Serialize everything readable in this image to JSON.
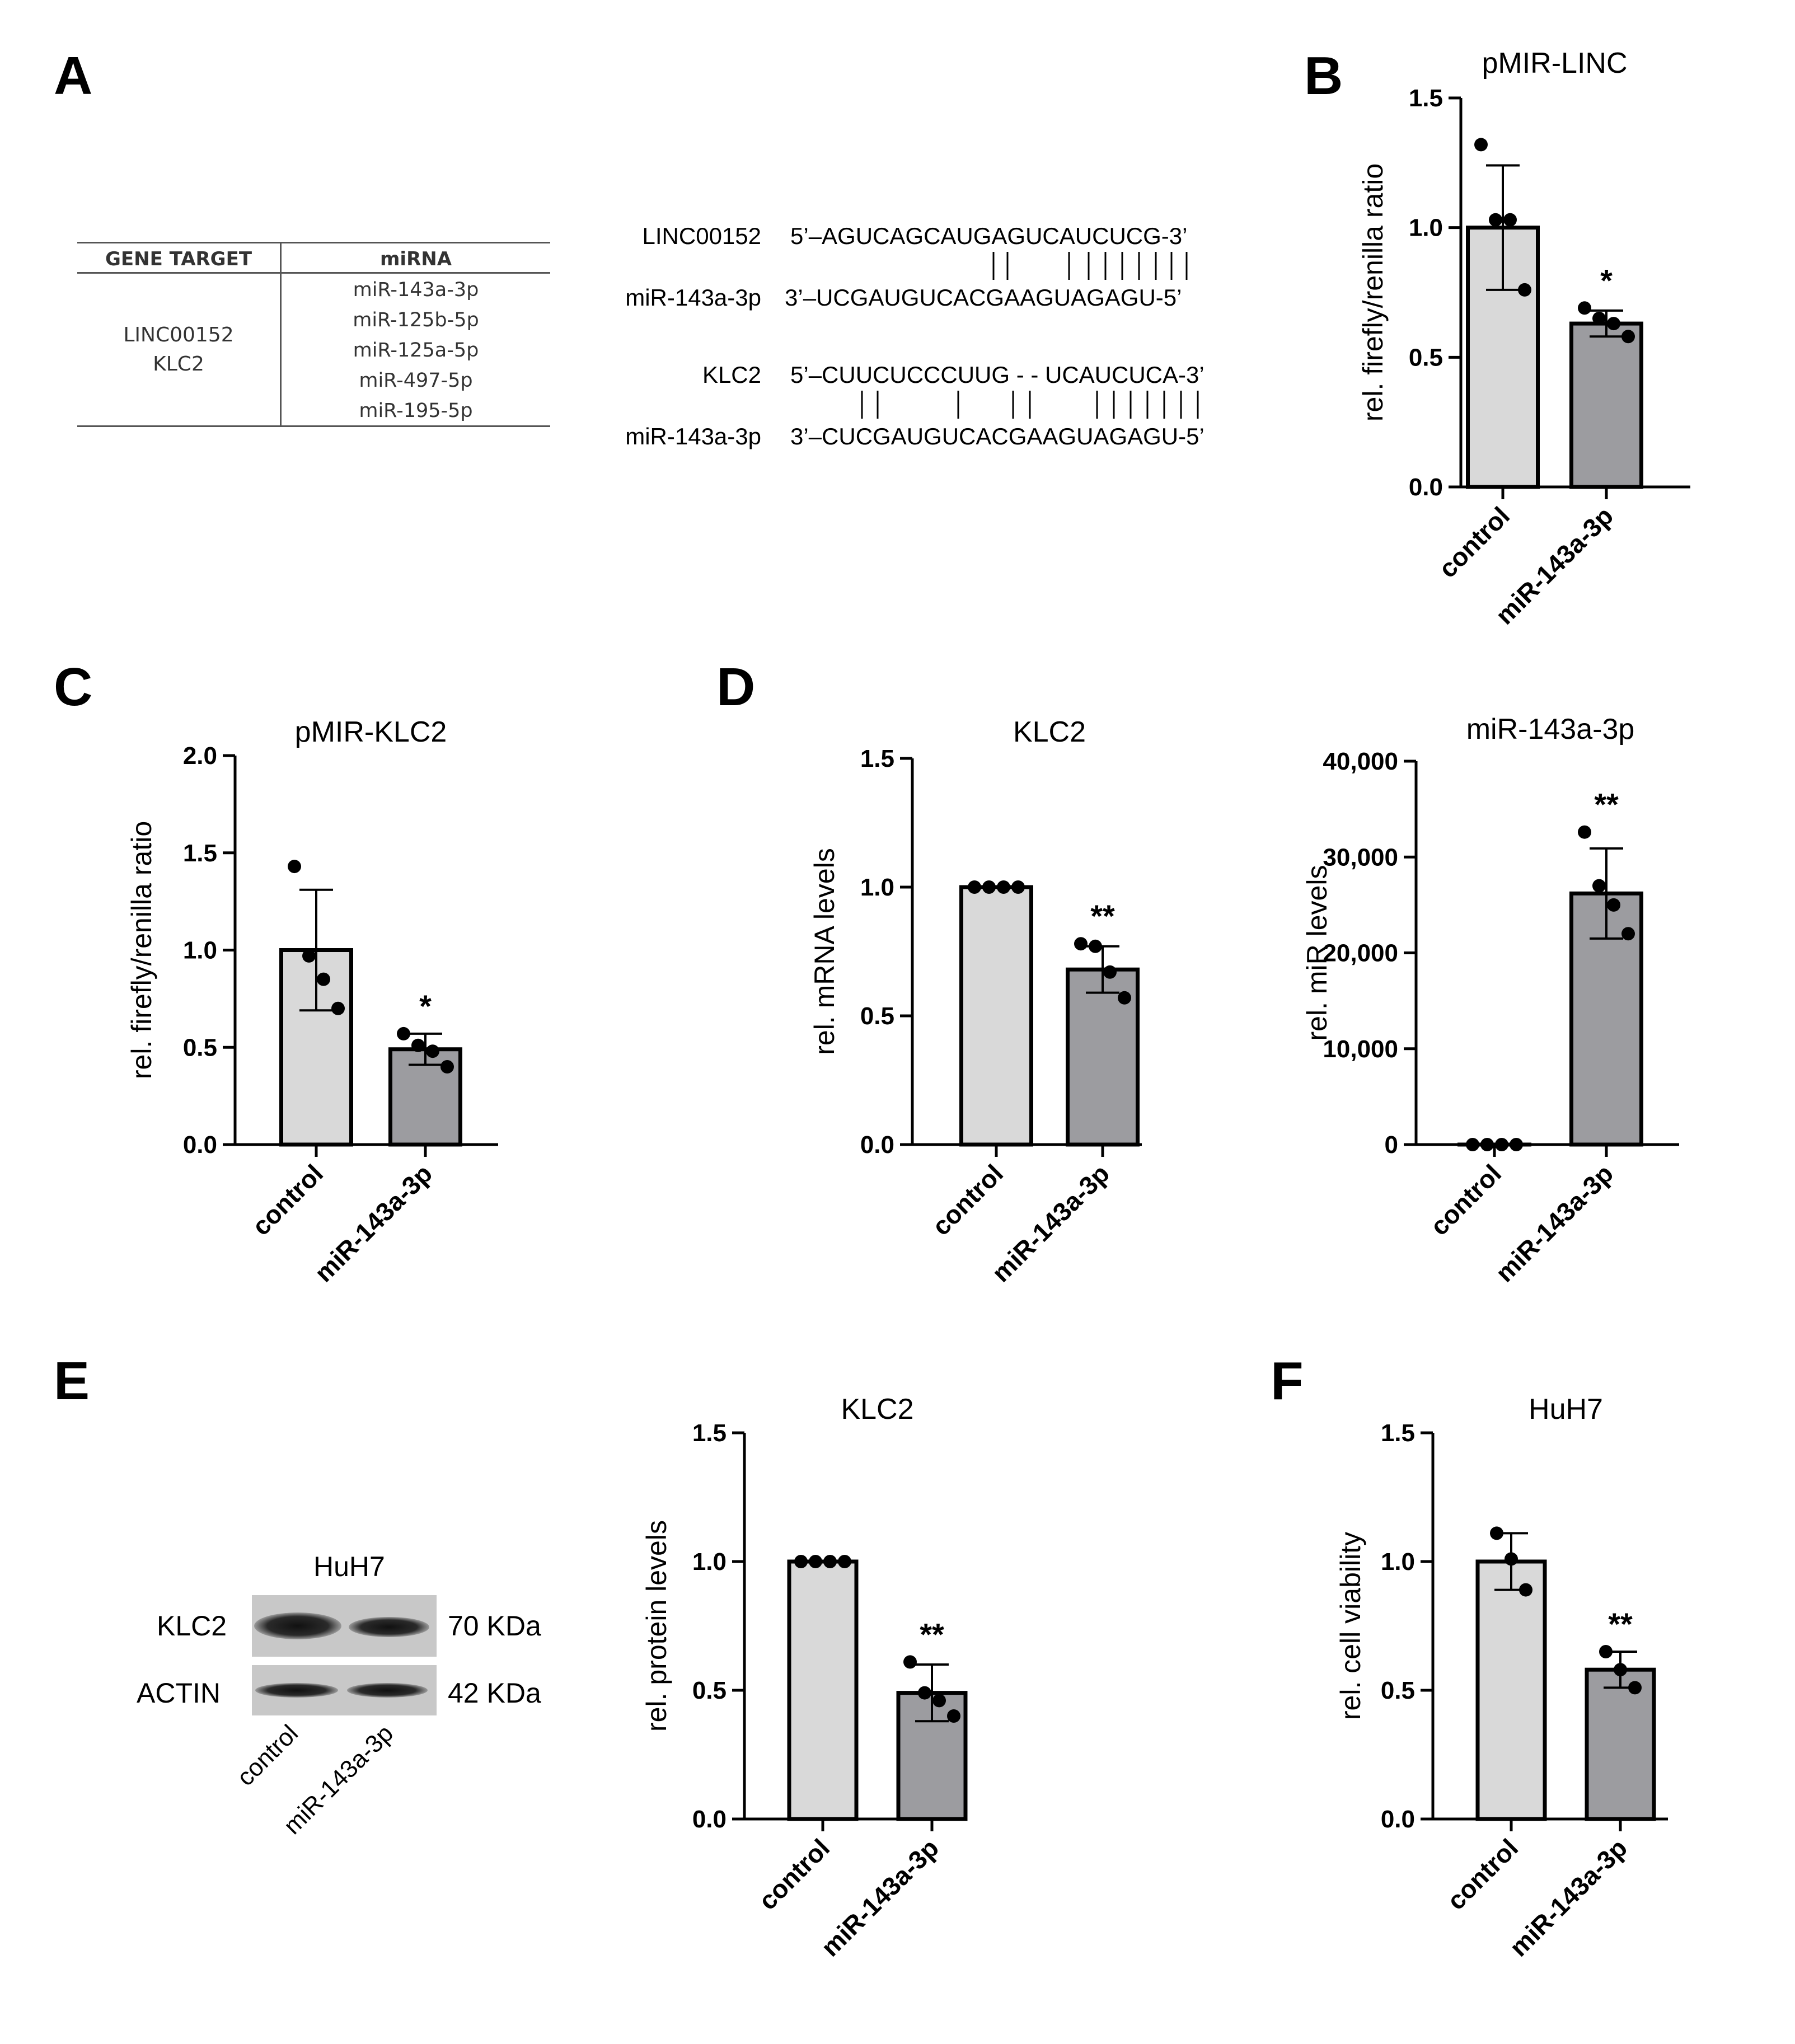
{
  "panel_letters": {
    "A": "A",
    "B": "B",
    "C": "C",
    "D": "D",
    "E": "E",
    "F": "F"
  },
  "table": {
    "header_gene": "GENE TARGET",
    "header_mirna": "miRNA",
    "genes": [
      "LINC00152",
      "KLC2"
    ],
    "mirnas": [
      "miR-143a-3p",
      "miR-125b-5p",
      "miR-125a-5p",
      "miR-497-5p",
      "miR-195-5p"
    ]
  },
  "alignments": [
    {
      "target_label": "LINC00152",
      "target_seq": "5’–AGUCAGCAUGAGUCAUCUCG-3’",
      "mir_label": "miR-143a-3p",
      "mir_seq": "3’–UCGAUGUCACGAAGUAGAGU-5’"
    },
    {
      "target_label": "KLC2",
      "target_seq": "5’–CUUCUCCCUUG - - UCAUCUCA-3’",
      "mir_label": "miR-143a-3p",
      "mir_seq": "3’–CUCGAUGUCACGAAGUAGAGU-5’"
    }
  ],
  "blot": {
    "title": "HuH7",
    "rows": [
      {
        "label": "KLC2",
        "size": "70 KDa"
      },
      {
        "label": "ACTIN",
        "size": "42 KDa"
      }
    ],
    "lanes": [
      "control",
      "miR-143a-3p"
    ]
  },
  "colors": {
    "control_bar": "#d9d9d9",
    "treated_bar": "#9c9ca0",
    "axis": "#000000"
  },
  "chart_data": [
    {
      "id": "B",
      "type": "bar",
      "title": "pMIR-LINC",
      "ylabel": "rel. firefly/renilla ratio",
      "categories": [
        "control",
        "miR-143a-3p"
      ],
      "ylim": [
        0,
        1.5
      ],
      "yticks": [
        0.0,
        0.5,
        1.0,
        1.5
      ],
      "ytick_labels": [
        "0.0",
        "0.5",
        "1.0",
        "1.5"
      ],
      "values": [
        1.0,
        0.63
      ],
      "errors": [
        0.24,
        0.05
      ],
      "points": [
        [
          1.32,
          1.03,
          1.03,
          0.76
        ],
        [
          0.69,
          0.65,
          0.63,
          0.58
        ]
      ],
      "significance": [
        "",
        "*"
      ]
    },
    {
      "id": "C",
      "type": "bar",
      "title": "pMIR-KLC2",
      "ylabel": "rel. firefly/renilla ratio",
      "categories": [
        "control",
        "miR-143a-3p"
      ],
      "ylim": [
        0,
        2.0
      ],
      "yticks": [
        0.0,
        0.5,
        1.0,
        1.5,
        2.0
      ],
      "ytick_labels": [
        "0.0",
        "0.5",
        "1.0",
        "1.5",
        "2.0"
      ],
      "values": [
        1.0,
        0.49
      ],
      "errors": [
        0.31,
        0.08
      ],
      "points": [
        [
          1.43,
          0.97,
          0.85,
          0.7
        ],
        [
          0.57,
          0.51,
          0.48,
          0.4
        ]
      ],
      "significance": [
        "",
        "*"
      ]
    },
    {
      "id": "D1",
      "type": "bar",
      "title": "KLC2",
      "ylabel": "rel. mRNA levels",
      "categories": [
        "control",
        "miR-143a-3p"
      ],
      "ylim": [
        0,
        1.5
      ],
      "yticks": [
        0.0,
        0.5,
        1.0,
        1.5
      ],
      "ytick_labels": [
        "0.0",
        "0.5",
        "1.0",
        "1.5"
      ],
      "values": [
        1.0,
        0.68
      ],
      "errors": [
        0.0,
        0.09
      ],
      "points": [
        [
          1.0,
          1.0,
          1.0,
          1.0
        ],
        [
          0.78,
          0.77,
          0.67,
          0.57
        ]
      ],
      "significance": [
        "",
        "**"
      ]
    },
    {
      "id": "D2",
      "type": "bar",
      "title": "miR-143a-3p",
      "ylabel": "rel. miR levels",
      "categories": [
        "control",
        "miR-143a-3p"
      ],
      "ylim": [
        0,
        40000
      ],
      "yticks": [
        0,
        10000,
        20000,
        30000,
        40000
      ],
      "ytick_labels": [
        "0",
        "10,000",
        "20,000",
        "30,000",
        "40,000"
      ],
      "values": [
        1,
        26200
      ],
      "errors": [
        0,
        4700
      ],
      "points": [
        [
          1,
          1,
          1,
          1
        ],
        [
          32600,
          27000,
          25000,
          22000
        ]
      ],
      "significance": [
        "",
        "**"
      ]
    },
    {
      "id": "E",
      "type": "bar",
      "title": "KLC2",
      "ylabel": "rel. protein levels",
      "categories": [
        "control",
        "miR-143a-3p"
      ],
      "ylim": [
        0,
        1.5
      ],
      "yticks": [
        0.0,
        0.5,
        1.0,
        1.5
      ],
      "ytick_labels": [
        "0.0",
        "0.5",
        "1.0",
        "1.5"
      ],
      "values": [
        1.0,
        0.49
      ],
      "errors": [
        0.0,
        0.11
      ],
      "points": [
        [
          1.0,
          1.0,
          1.0,
          1.0
        ],
        [
          0.61,
          0.49,
          0.46,
          0.4
        ]
      ],
      "significance": [
        "",
        "**"
      ]
    },
    {
      "id": "F",
      "type": "bar",
      "title": "HuH7",
      "ylabel": "rel. cell viability",
      "categories": [
        "control",
        "miR-143a-3p"
      ],
      "ylim": [
        0,
        1.5
      ],
      "yticks": [
        0.0,
        0.5,
        1.0,
        1.5
      ],
      "ytick_labels": [
        "0.0",
        "0.5",
        "1.0",
        "1.5"
      ],
      "values": [
        1.0,
        0.58
      ],
      "errors": [
        0.11,
        0.07
      ],
      "points": [
        [
          1.11,
          1.01,
          0.89
        ],
        [
          0.65,
          0.58,
          0.51
        ]
      ],
      "significance": [
        "",
        "**"
      ]
    }
  ]
}
